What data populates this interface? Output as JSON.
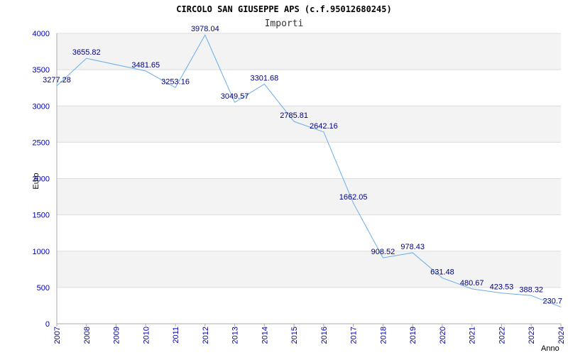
{
  "chart_data": {
    "type": "line",
    "title": "CIRCOLO SAN GIUSEPPE APS (c.f.95012680245)",
    "subtitle": "Importi",
    "xlabel": "Anno",
    "ylabel": "Euro",
    "ylim": [
      0,
      4000
    ],
    "yticks": [
      0,
      500,
      1000,
      1500,
      2000,
      2500,
      3000,
      3500,
      4000
    ],
    "grid": true,
    "legend": "none",
    "series_color": "#6aaee8",
    "x": [
      "2007",
      "2008",
      "2009",
      "2010",
      "2011",
      "2012",
      "2013",
      "2014",
      "2015",
      "2016",
      "2017",
      "2018",
      "2019",
      "2020",
      "2021",
      "2022",
      "2023",
      "2024"
    ],
    "values": [
      3277.28,
      3655.82,
      null,
      3481.65,
      3253.16,
      3978.04,
      3049.57,
      3301.68,
      2785.81,
      2642.16,
      1662.05,
      908.52,
      978.43,
      631.48,
      480.67,
      423.53,
      388.32,
      230.7
    ],
    "labels": [
      "3277.28",
      "3655.82",
      "",
      "3481.65",
      "3253.16",
      "3978.04",
      "3049.57",
      "3301.68",
      "2785.81",
      "2642.16",
      "1662.05",
      "908.52",
      "978.43",
      "631.48",
      "480.67",
      "423.53",
      "388.32",
      "230.7"
    ]
  }
}
